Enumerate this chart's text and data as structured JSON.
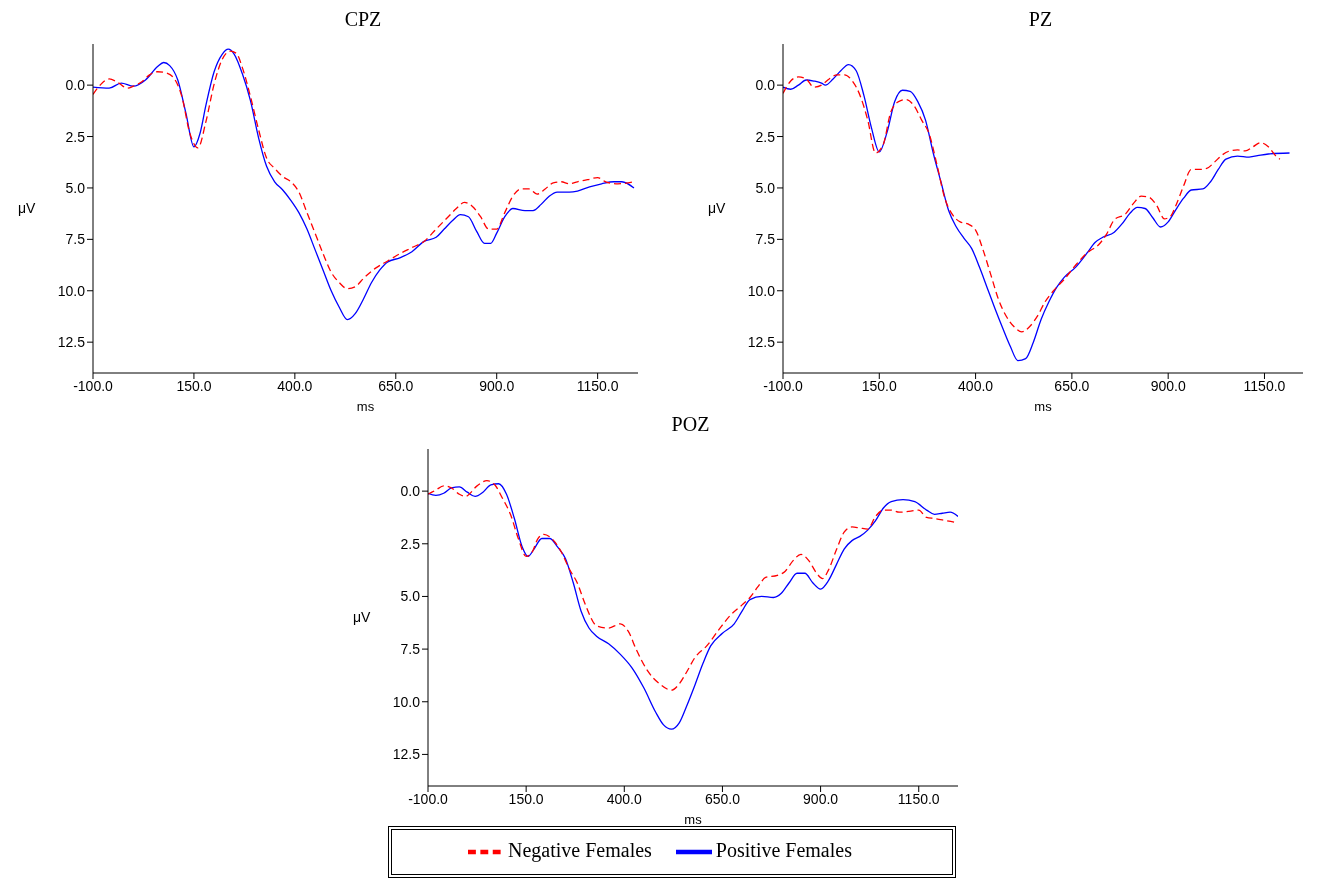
{
  "chart_data": [
    {
      "type": "line",
      "title": "CPZ",
      "xlabel": "ms",
      "ylabel": "μV",
      "xlim": [
        -100,
        1250
      ],
      "ylim": [
        14,
        -2
      ],
      "xticks": [
        {
          "value": -100,
          "label": "-100.0"
        },
        {
          "value": 150,
          "label": "150.0"
        },
        {
          "value": 400,
          "label": "400.0"
        },
        {
          "value": 650,
          "label": "650.0"
        },
        {
          "value": 900,
          "label": "900.0"
        },
        {
          "value": 1150,
          "label": "1150.0"
        }
      ],
      "yticks": [
        {
          "value": 0,
          "label": "0.0"
        },
        {
          "value": 2.5,
          "label": "2.5"
        },
        {
          "value": 5,
          "label": "5.0"
        },
        {
          "value": 7.5,
          "label": "7.5"
        },
        {
          "value": 10,
          "label": "10.0"
        },
        {
          "value": 12.5,
          "label": "12.5"
        }
      ],
      "grid": false,
      "legend": false,
      "marker": "none",
      "series": [
        {
          "color": "#0000ff",
          "line_style": "solid",
          "x": [
            -100,
            -60,
            -30,
            0,
            30,
            60,
            75,
            90,
            110,
            130,
            150,
            165,
            180,
            200,
            220,
            235,
            250,
            270,
            290,
            310,
            330,
            350,
            370,
            390,
            410,
            430,
            450,
            470,
            490,
            510,
            530,
            550,
            570,
            590,
            610,
            630,
            660,
            690,
            720,
            750,
            770,
            790,
            810,
            830,
            850,
            870,
            885,
            900,
            920,
            940,
            970,
            990,
            1010,
            1030,
            1050,
            1080,
            1100,
            1130,
            1160,
            1190,
            1210,
            1240
          ],
          "values": [
            0.1,
            0.15,
            -0.1,
            0.05,
            -0.25,
            -0.9,
            -1.1,
            -0.95,
            -0.25,
            1.35,
            3.0,
            2.35,
            0.95,
            -0.65,
            -1.5,
            -1.75,
            -1.5,
            -0.55,
            0.75,
            2.55,
            3.95,
            4.7,
            5.1,
            5.6,
            6.2,
            7.0,
            8.0,
            9.0,
            10.0,
            10.8,
            11.4,
            11.1,
            10.4,
            9.6,
            9.0,
            8.6,
            8.4,
            8.1,
            7.6,
            7.4,
            7.0,
            6.6,
            6.3,
            6.4,
            7.1,
            7.7,
            7.7,
            7.2,
            6.4,
            6.0,
            6.1,
            6.1,
            5.8,
            5.4,
            5.2,
            5.2,
            5.15,
            4.95,
            4.8,
            4.7,
            4.7,
            5.0
          ]
        },
        {
          "color": "#ff0000",
          "line_style": "dashed",
          "x": [
            -100,
            -80,
            -60,
            -40,
            -15,
            0,
            20,
            40,
            60,
            80,
            100,
            120,
            140,
            160,
            180,
            200,
            220,
            240,
            255,
            270,
            290,
            310,
            330,
            350,
            370,
            390,
            410,
            430,
            450,
            470,
            490,
            510,
            530,
            550,
            570,
            600,
            630,
            660,
            690,
            720,
            750,
            780,
            800,
            820,
            840,
            860,
            880,
            900,
            920,
            940,
            960,
            980,
            1000,
            1020,
            1040,
            1060,
            1080,
            1100,
            1125,
            1150,
            1170,
            1200,
            1240
          ],
          "values": [
            0.45,
            -0.05,
            -0.3,
            -0.15,
            0.15,
            0.05,
            -0.15,
            -0.5,
            -0.65,
            -0.6,
            -0.35,
            0.55,
            2.35,
            3.05,
            1.75,
            -0.05,
            -1.25,
            -1.65,
            -1.55,
            -0.85,
            0.55,
            2.15,
            3.55,
            4.05,
            4.45,
            4.7,
            5.2,
            6.2,
            7.2,
            8.2,
            9.1,
            9.6,
            9.9,
            9.8,
            9.4,
            8.9,
            8.55,
            8.2,
            7.9,
            7.6,
            7.0,
            6.4,
            6.0,
            5.7,
            5.9,
            6.4,
            7.0,
            7.0,
            6.2,
            5.4,
            5.05,
            5.05,
            5.3,
            5.05,
            4.75,
            4.7,
            4.8,
            4.7,
            4.6,
            4.5,
            4.7,
            4.8,
            4.7
          ]
        }
      ]
    },
    {
      "type": "line",
      "title": "PZ",
      "xlabel": "ms",
      "ylabel": "μV",
      "xlim": [
        -100,
        1250
      ],
      "ylim": [
        14,
        -2
      ],
      "xticks": [
        {
          "value": -100,
          "label": "-100.0"
        },
        {
          "value": 150,
          "label": "150.0"
        },
        {
          "value": 400,
          "label": "400.0"
        },
        {
          "value": 650,
          "label": "650.0"
        },
        {
          "value": 900,
          "label": "900.0"
        },
        {
          "value": 1150,
          "label": "1150.0"
        }
      ],
      "yticks": [
        {
          "value": 0,
          "label": "0.0"
        },
        {
          "value": 2.5,
          "label": "2.5"
        },
        {
          "value": 5,
          "label": "5.0"
        },
        {
          "value": 7.5,
          "label": "7.5"
        },
        {
          "value": 10,
          "label": "10.0"
        },
        {
          "value": 12.5,
          "label": "12.5"
        }
      ],
      "grid": false,
      "legend": false,
      "marker": "none",
      "series": [
        {
          "color": "#0000ff",
          "line_style": "solid",
          "x": [
            -100,
            -80,
            -60,
            -40,
            -20,
            0,
            10,
            30,
            50,
            70,
            90,
            110,
            130,
            150,
            170,
            190,
            210,
            230,
            250,
            270,
            290,
            310,
            330,
            350,
            370,
            390,
            410,
            430,
            450,
            470,
            490,
            510,
            530,
            550,
            570,
            590,
            610,
            630,
            660,
            690,
            710,
            730,
            760,
            780,
            800,
            820,
            840,
            860,
            880,
            900,
            920,
            940,
            960,
            990,
            1010,
            1030,
            1050,
            1080,
            1110,
            1140,
            1160,
            1215
          ],
          "values": [
            0.1,
            0.2,
            0.0,
            -0.25,
            -0.2,
            -0.1,
            0.0,
            -0.3,
            -0.7,
            -1.0,
            -0.7,
            0.5,
            2.1,
            3.25,
            2.3,
            0.8,
            0.25,
            0.3,
            0.8,
            1.7,
            3.3,
            4.7,
            6.1,
            6.9,
            7.45,
            7.95,
            8.85,
            9.85,
            10.85,
            11.8,
            12.7,
            13.4,
            13.3,
            12.5,
            11.4,
            10.55,
            9.85,
            9.35,
            8.85,
            8.15,
            7.65,
            7.4,
            7.15,
            6.75,
            6.25,
            5.95,
            6.0,
            6.45,
            6.9,
            6.65,
            6.05,
            5.5,
            5.1,
            5.05,
            4.7,
            4.1,
            3.6,
            3.45,
            3.5,
            3.4,
            3.35,
            3.3
          ]
        },
        {
          "color": "#ff0000",
          "line_style": "dashed",
          "x": [
            -100,
            -80,
            -60,
            -40,
            -20,
            0,
            20,
            40,
            60,
            80,
            100,
            120,
            140,
            160,
            180,
            200,
            220,
            240,
            260,
            280,
            300,
            320,
            340,
            360,
            380,
            400,
            420,
            440,
            460,
            480,
            500,
            520,
            540,
            560,
            580,
            600,
            630,
            660,
            690,
            720,
            740,
            760,
            790,
            810,
            830,
            850,
            870,
            890,
            905,
            920,
            940,
            960,
            980,
            1000,
            1020,
            1040,
            1060,
            1080,
            1100,
            1120,
            1140,
            1160,
            1180,
            1190
          ],
          "values": [
            0.4,
            -0.2,
            -0.4,
            -0.3,
            0.1,
            0.0,
            -0.3,
            -0.5,
            -0.5,
            -0.2,
            0.5,
            1.7,
            3.3,
            2.9,
            1.3,
            0.8,
            0.7,
            1.0,
            1.7,
            2.4,
            3.9,
            5.5,
            6.3,
            6.65,
            6.75,
            7.05,
            8.05,
            9.25,
            10.45,
            11.25,
            11.75,
            12.0,
            11.75,
            11.25,
            10.55,
            10.05,
            9.45,
            8.75,
            8.15,
            7.75,
            7.25,
            6.55,
            6.25,
            5.75,
            5.4,
            5.45,
            5.85,
            6.5,
            6.4,
            5.85,
            4.9,
            4.1,
            4.1,
            4.05,
            3.75,
            3.4,
            3.2,
            3.15,
            3.2,
            3.0,
            2.8,
            3.0,
            3.45,
            3.6
          ]
        }
      ]
    },
    {
      "type": "line",
      "title": "POZ",
      "xlabel": "ms",
      "ylabel": "μV",
      "xlim": [
        -100,
        1250
      ],
      "ylim": [
        14,
        -2
      ],
      "xticks": [
        {
          "value": -100,
          "label": "-100.0"
        },
        {
          "value": 150,
          "label": "150.0"
        },
        {
          "value": 400,
          "label": "400.0"
        },
        {
          "value": 650,
          "label": "650.0"
        },
        {
          "value": 900,
          "label": "900.0"
        },
        {
          "value": 1150,
          "label": "1150.0"
        }
      ],
      "yticks": [
        {
          "value": 0,
          "label": "0.0"
        },
        {
          "value": 2.5,
          "label": "2.5"
        },
        {
          "value": 5,
          "label": "5.0"
        },
        {
          "value": 7.5,
          "label": "7.5"
        },
        {
          "value": 10,
          "label": "10.0"
        },
        {
          "value": 12.5,
          "label": "12.5"
        }
      ],
      "grid": false,
      "legend": "bottom",
      "marker": "none",
      "series": [
        {
          "name": "Positive Females",
          "color": "#0000ff",
          "line_style": "solid",
          "x": [
            -100,
            -80,
            -60,
            -40,
            -20,
            0,
            20,
            40,
            60,
            80,
            100,
            120,
            140,
            155,
            170,
            190,
            210,
            230,
            250,
            270,
            290,
            310,
            330,
            360,
            390,
            420,
            450,
            480,
            500,
            520,
            540,
            560,
            580,
            600,
            620,
            650,
            680,
            700,
            720,
            750,
            780,
            800,
            820,
            840,
            860,
            880,
            900,
            920,
            940,
            960,
            980,
            1000,
            1020,
            1040,
            1060,
            1080,
            1110,
            1140,
            1170,
            1190,
            1210,
            1230,
            1250
          ],
          "values": [
            0.1,
            0.2,
            0.1,
            -0.15,
            -0.2,
            0.05,
            0.25,
            0.05,
            -0.3,
            -0.35,
            0.15,
            1.3,
            2.65,
            3.1,
            2.75,
            2.25,
            2.25,
            2.65,
            3.2,
            4.35,
            5.7,
            6.5,
            6.9,
            7.25,
            7.75,
            8.4,
            9.35,
            10.5,
            11.1,
            11.3,
            11.0,
            10.15,
            9.2,
            8.2,
            7.35,
            6.75,
            6.3,
            5.7,
            5.15,
            5.0,
            5.05,
            4.85,
            4.35,
            3.9,
            3.9,
            4.35,
            4.65,
            4.25,
            3.5,
            2.75,
            2.35,
            2.15,
            1.85,
            1.4,
            0.8,
            0.5,
            0.4,
            0.5,
            0.9,
            1.1,
            1.05,
            1.0,
            1.2
          ]
        },
        {
          "name": "Negative Females",
          "color": "#ff0000",
          "line_style": "dashed",
          "x": [
            -100,
            -80,
            -60,
            -40,
            -20,
            -5,
            25,
            50,
            70,
            90,
            110,
            130,
            150,
            165,
            180,
            195,
            215,
            240,
            260,
            280,
            300,
            330,
            360,
            390,
            410,
            430,
            460,
            490,
            520,
            540,
            560,
            580,
            610,
            640,
            670,
            700,
            720,
            740,
            760,
            790,
            810,
            830,
            850,
            870,
            890,
            905,
            920,
            940,
            960,
            980,
            1000,
            1020,
            1040,
            1060,
            1080,
            1100,
            1130,
            1150,
            1170,
            1190,
            1220,
            1250
          ],
          "values": [
            0.15,
            -0.05,
            -0.25,
            -0.15,
            0.15,
            0.25,
            -0.25,
            -0.5,
            -0.3,
            0.35,
            1.1,
            2.25,
            3.1,
            2.9,
            2.25,
            2.05,
            2.25,
            2.9,
            3.7,
            4.35,
            5.35,
            6.4,
            6.5,
            6.3,
            6.65,
            7.5,
            8.55,
            9.15,
            9.45,
            9.15,
            8.55,
            7.9,
            7.35,
            6.6,
            5.9,
            5.4,
            5.05,
            4.55,
            4.1,
            4.0,
            3.8,
            3.3,
            3.0,
            3.3,
            3.9,
            4.15,
            3.75,
            2.8,
            1.95,
            1.7,
            1.75,
            1.8,
            1.2,
            0.9,
            0.9,
            1.0,
            0.95,
            0.9,
            1.25,
            1.3,
            1.4,
            1.5
          ]
        }
      ]
    }
  ]
}
